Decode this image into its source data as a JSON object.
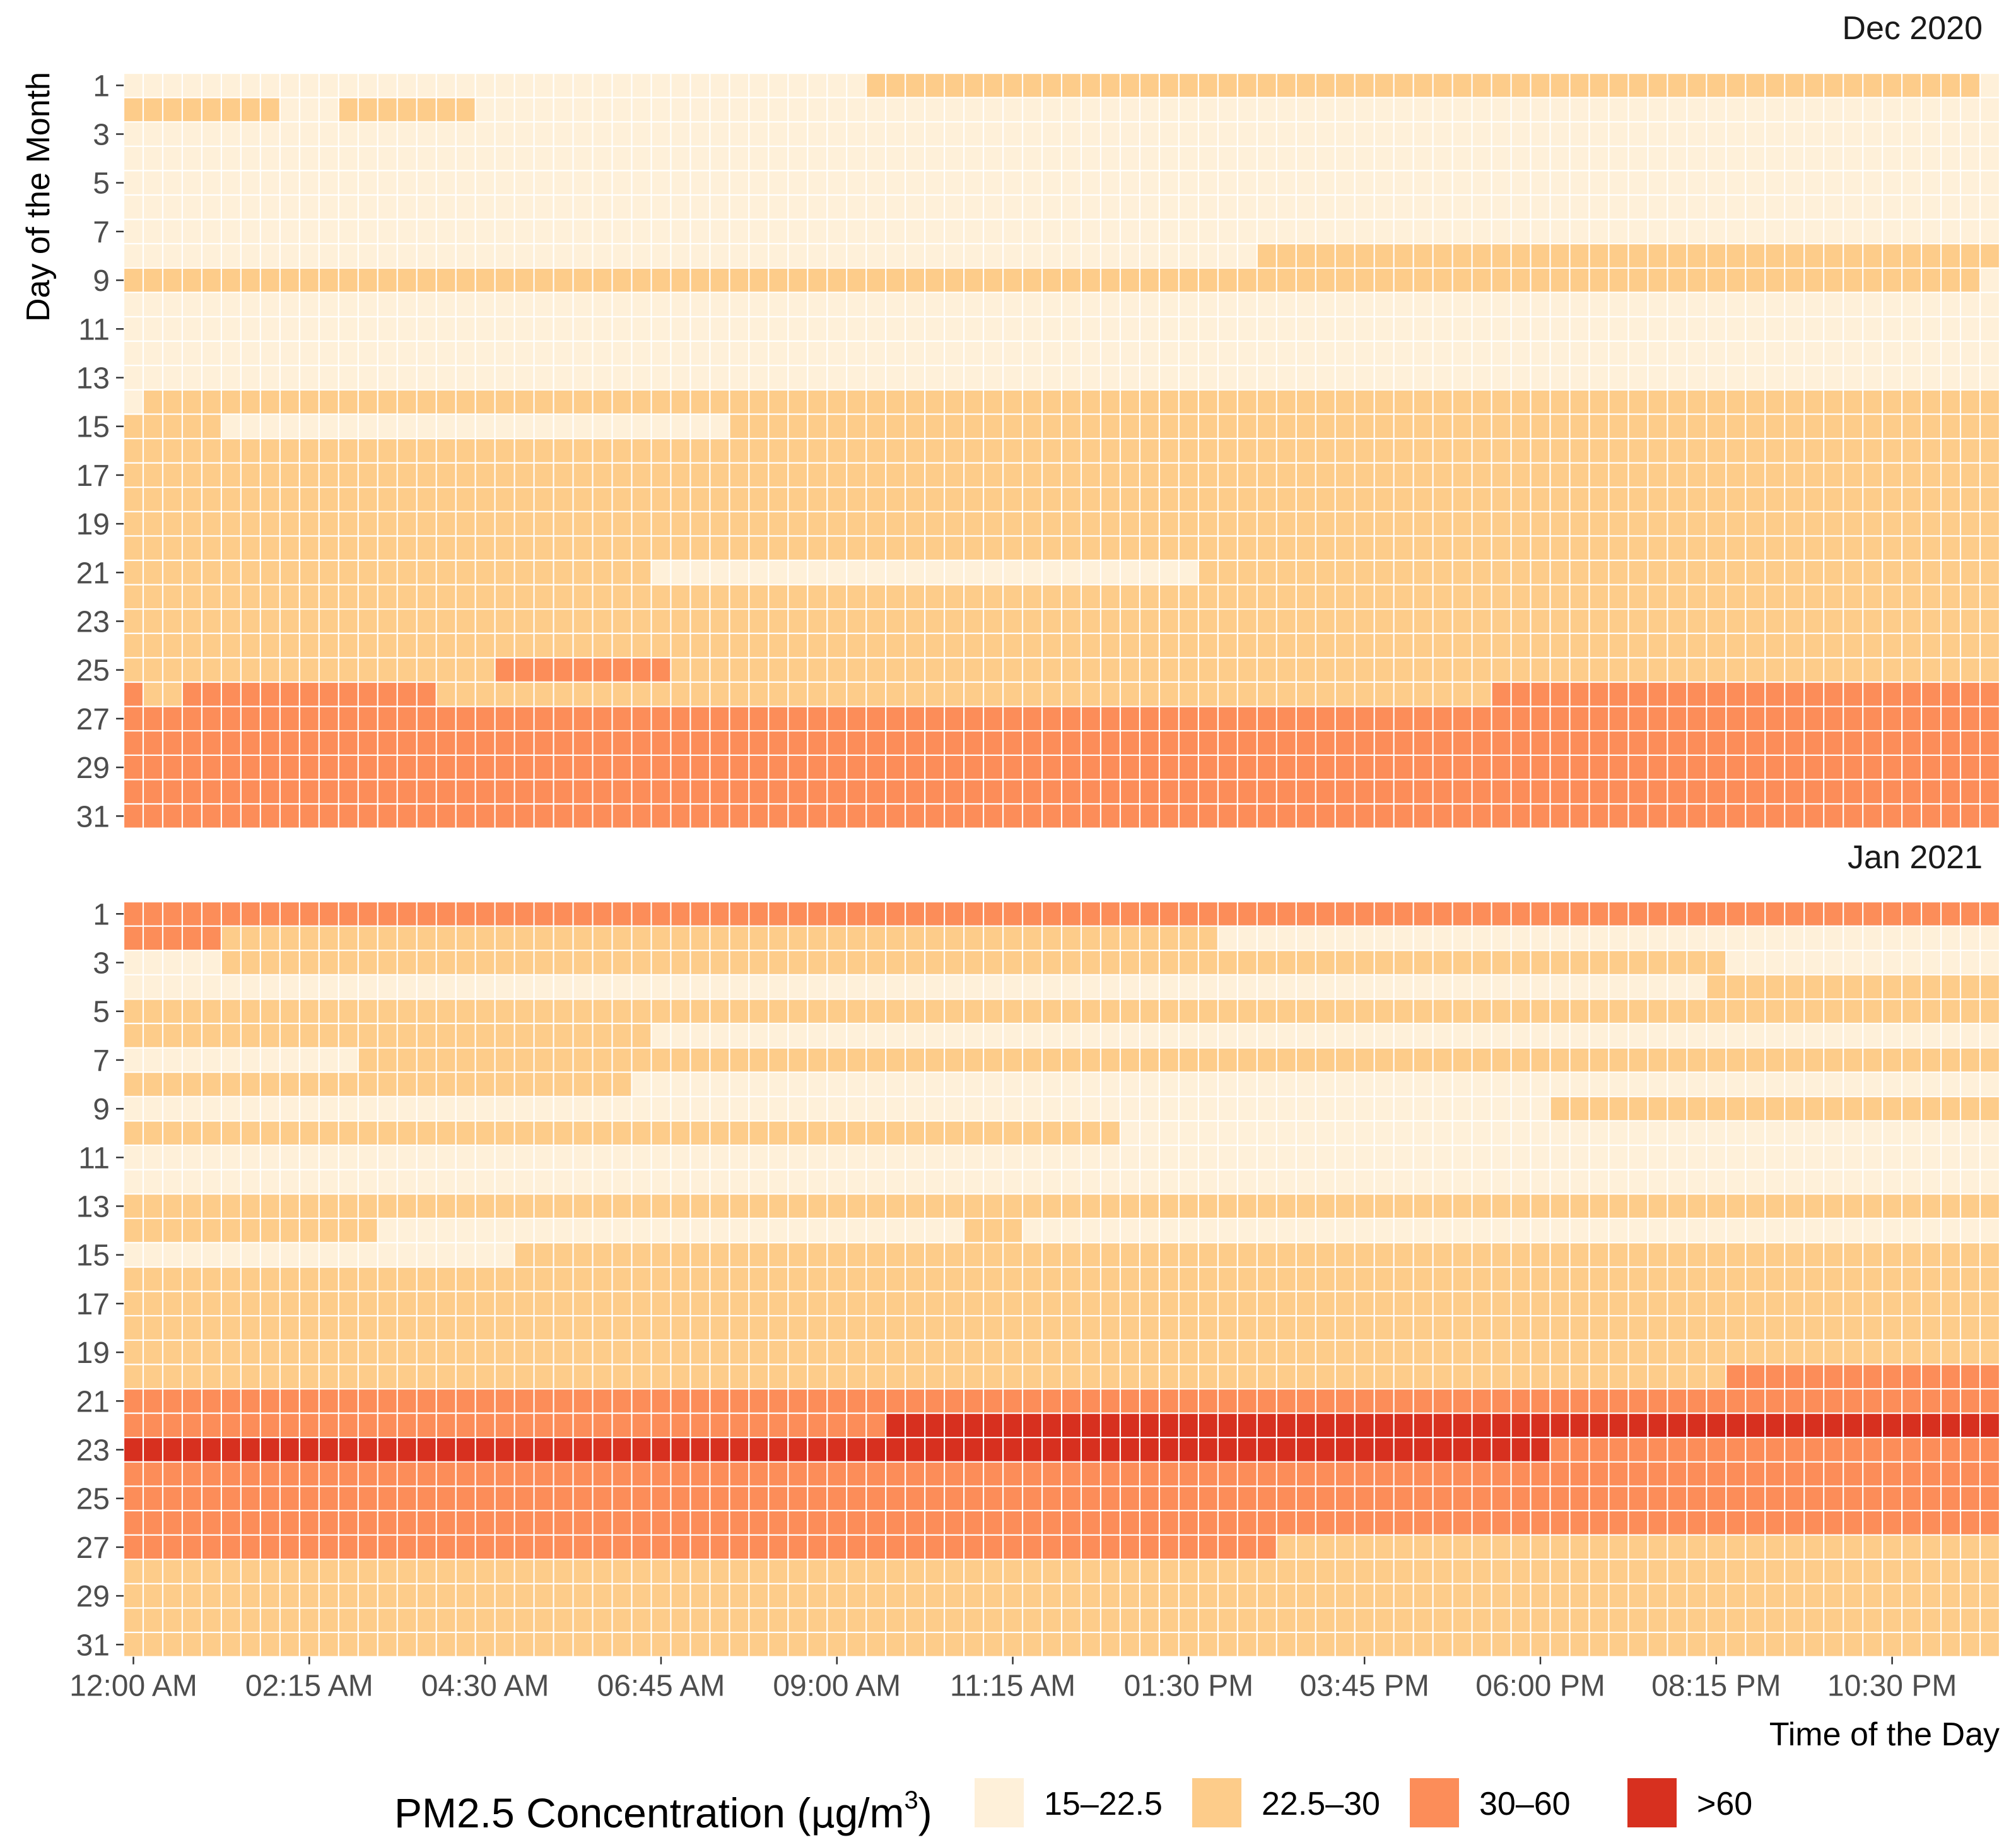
{
  "chart_data": {
    "type": "heatmap",
    "xlabel": "Time of the Day",
    "ylabel": "Day of the Month",
    "x_ticks": [
      "12:00 AM",
      "02:15 AM",
      "04:30 AM",
      "06:45 AM",
      "09:00 AM",
      "11:15 AM",
      "01:30 PM",
      "03:45 PM",
      "06:00 PM",
      "08:15 PM",
      "10:30 PM"
    ],
    "x_tick_slots": [
      0,
      9,
      18,
      27,
      36,
      45,
      54,
      63,
      72,
      81,
      90
    ],
    "y_ticks": [
      "1",
      "3",
      "5",
      "7",
      "9",
      "11",
      "13",
      "15",
      "17",
      "19",
      "21",
      "23",
      "25",
      "27",
      "29",
      "31"
    ],
    "slots_per_day": 96,
    "slot_minutes": 15,
    "legend": {
      "title_main": "PM2.5 Concentration (",
      "title_mu": "μ",
      "title_unit": "g/m",
      "title_sup": "3",
      "title_close": ")",
      "placement": "bottom"
    },
    "categories": [
      {
        "label": "15–22.5",
        "color": "#fef0d9"
      },
      {
        "label": "22.5–30",
        "color": "#fdcc8a"
      },
      {
        "label": "30–60",
        "color": "#fc8d59"
      },
      {
        "label": ">60",
        "color": "#d7301f"
      }
    ],
    "panels": [
      {
        "title": "Dec 2020",
        "days": 31,
        "rows": [
          [
            [
              0,
              38,
              0
            ],
            [
              38,
              95,
              1
            ],
            [
              95,
              96,
              0
            ]
          ],
          [
            [
              0,
              8,
              1
            ],
            [
              8,
              11,
              0
            ],
            [
              11,
              18,
              1
            ],
            [
              18,
              96,
              0
            ]
          ],
          [
            [
              0,
              96,
              0
            ]
          ],
          [
            [
              0,
              96,
              0
            ]
          ],
          [
            [
              0,
              96,
              0
            ]
          ],
          [
            [
              0,
              96,
              0
            ]
          ],
          [
            [
              0,
              96,
              0
            ]
          ],
          [
            [
              0,
              58,
              0
            ],
            [
              58,
              96,
              1
            ]
          ],
          [
            [
              0,
              95,
              1
            ],
            [
              95,
              96,
              0
            ]
          ],
          [
            [
              0,
              96,
              0
            ]
          ],
          [
            [
              0,
              96,
              0
            ]
          ],
          [
            [
              0,
              96,
              0
            ]
          ],
          [
            [
              0,
              96,
              0
            ]
          ],
          [
            [
              0,
              1,
              0
            ],
            [
              1,
              96,
              1
            ]
          ],
          [
            [
              0,
              5,
              1
            ],
            [
              5,
              31,
              0
            ],
            [
              31,
              96,
              1
            ]
          ],
          [
            [
              0,
              96,
              1
            ]
          ],
          [
            [
              0,
              96,
              1
            ]
          ],
          [
            [
              0,
              96,
              1
            ]
          ],
          [
            [
              0,
              96,
              1
            ]
          ],
          [
            [
              0,
              96,
              1
            ]
          ],
          [
            [
              0,
              27,
              1
            ],
            [
              27,
              55,
              0
            ],
            [
              55,
              96,
              1
            ]
          ],
          [
            [
              0,
              96,
              1
            ]
          ],
          [
            [
              0,
              96,
              1
            ]
          ],
          [
            [
              0,
              96,
              1
            ]
          ],
          [
            [
              0,
              19,
              1
            ],
            [
              19,
              28,
              2
            ],
            [
              28,
              96,
              1
            ]
          ],
          [
            [
              0,
              1,
              2
            ],
            [
              1,
              3,
              1
            ],
            [
              3,
              16,
              2
            ],
            [
              16,
              70,
              1
            ],
            [
              70,
              88,
              2
            ],
            [
              88,
              96,
              2
            ]
          ],
          [
            [
              0,
              96,
              2
            ]
          ],
          [
            [
              0,
              96,
              2
            ]
          ],
          [
            [
              0,
              96,
              2
            ]
          ],
          [
            [
              0,
              96,
              2
            ]
          ],
          [
            [
              0,
              96,
              2
            ]
          ]
        ]
      },
      {
        "title": "Jan 2021",
        "days": 31,
        "rows": [
          [
            [
              0,
              96,
              2
            ]
          ],
          [
            [
              0,
              5,
              2
            ],
            [
              5,
              56,
              1
            ],
            [
              56,
              96,
              0
            ]
          ],
          [
            [
              0,
              5,
              0
            ],
            [
              5,
              82,
              1
            ],
            [
              82,
              96,
              0
            ]
          ],
          [
            [
              0,
              81,
              0
            ],
            [
              81,
              96,
              1
            ]
          ],
          [
            [
              0,
              96,
              1
            ]
          ],
          [
            [
              0,
              27,
              1
            ],
            [
              27,
              96,
              0
            ]
          ],
          [
            [
              0,
              12,
              0
            ],
            [
              12,
              96,
              1
            ]
          ],
          [
            [
              0,
              26,
              1
            ],
            [
              26,
              96,
              0
            ]
          ],
          [
            [
              0,
              73,
              0
            ],
            [
              73,
              96,
              1
            ]
          ],
          [
            [
              0,
              51,
              1
            ],
            [
              51,
              96,
              0
            ]
          ],
          [
            [
              0,
              96,
              0
            ]
          ],
          [
            [
              0,
              96,
              0
            ]
          ],
          [
            [
              0,
              61,
              1
            ],
            [
              61,
              96,
              1
            ]
          ],
          [
            [
              0,
              13,
              1
            ],
            [
              13,
              43,
              0
            ],
            [
              43,
              46,
              1
            ],
            [
              46,
              96,
              0
            ]
          ],
          [
            [
              0,
              20,
              0
            ],
            [
              20,
              96,
              1
            ]
          ],
          [
            [
              0,
              96,
              1
            ]
          ],
          [
            [
              0,
              96,
              1
            ]
          ],
          [
            [
              0,
              96,
              1
            ]
          ],
          [
            [
              0,
              96,
              1
            ]
          ],
          [
            [
              0,
              82,
              1
            ],
            [
              82,
              96,
              2
            ]
          ],
          [
            [
              0,
              96,
              2
            ]
          ],
          [
            [
              0,
              39,
              2
            ],
            [
              39,
              96,
              3
            ]
          ],
          [
            [
              0,
              73,
              3
            ],
            [
              73,
              96,
              2
            ]
          ],
          [
            [
              0,
              96,
              2
            ]
          ],
          [
            [
              0,
              96,
              2
            ]
          ],
          [
            [
              0,
              96,
              2
            ]
          ],
          [
            [
              0,
              59,
              2
            ],
            [
              59,
              96,
              1
            ]
          ],
          [
            [
              0,
              96,
              1
            ]
          ],
          [
            [
              0,
              96,
              1
            ]
          ],
          [
            [
              0,
              96,
              1
            ]
          ],
          [
            [
              0,
              96,
              1
            ]
          ]
        ]
      }
    ]
  }
}
